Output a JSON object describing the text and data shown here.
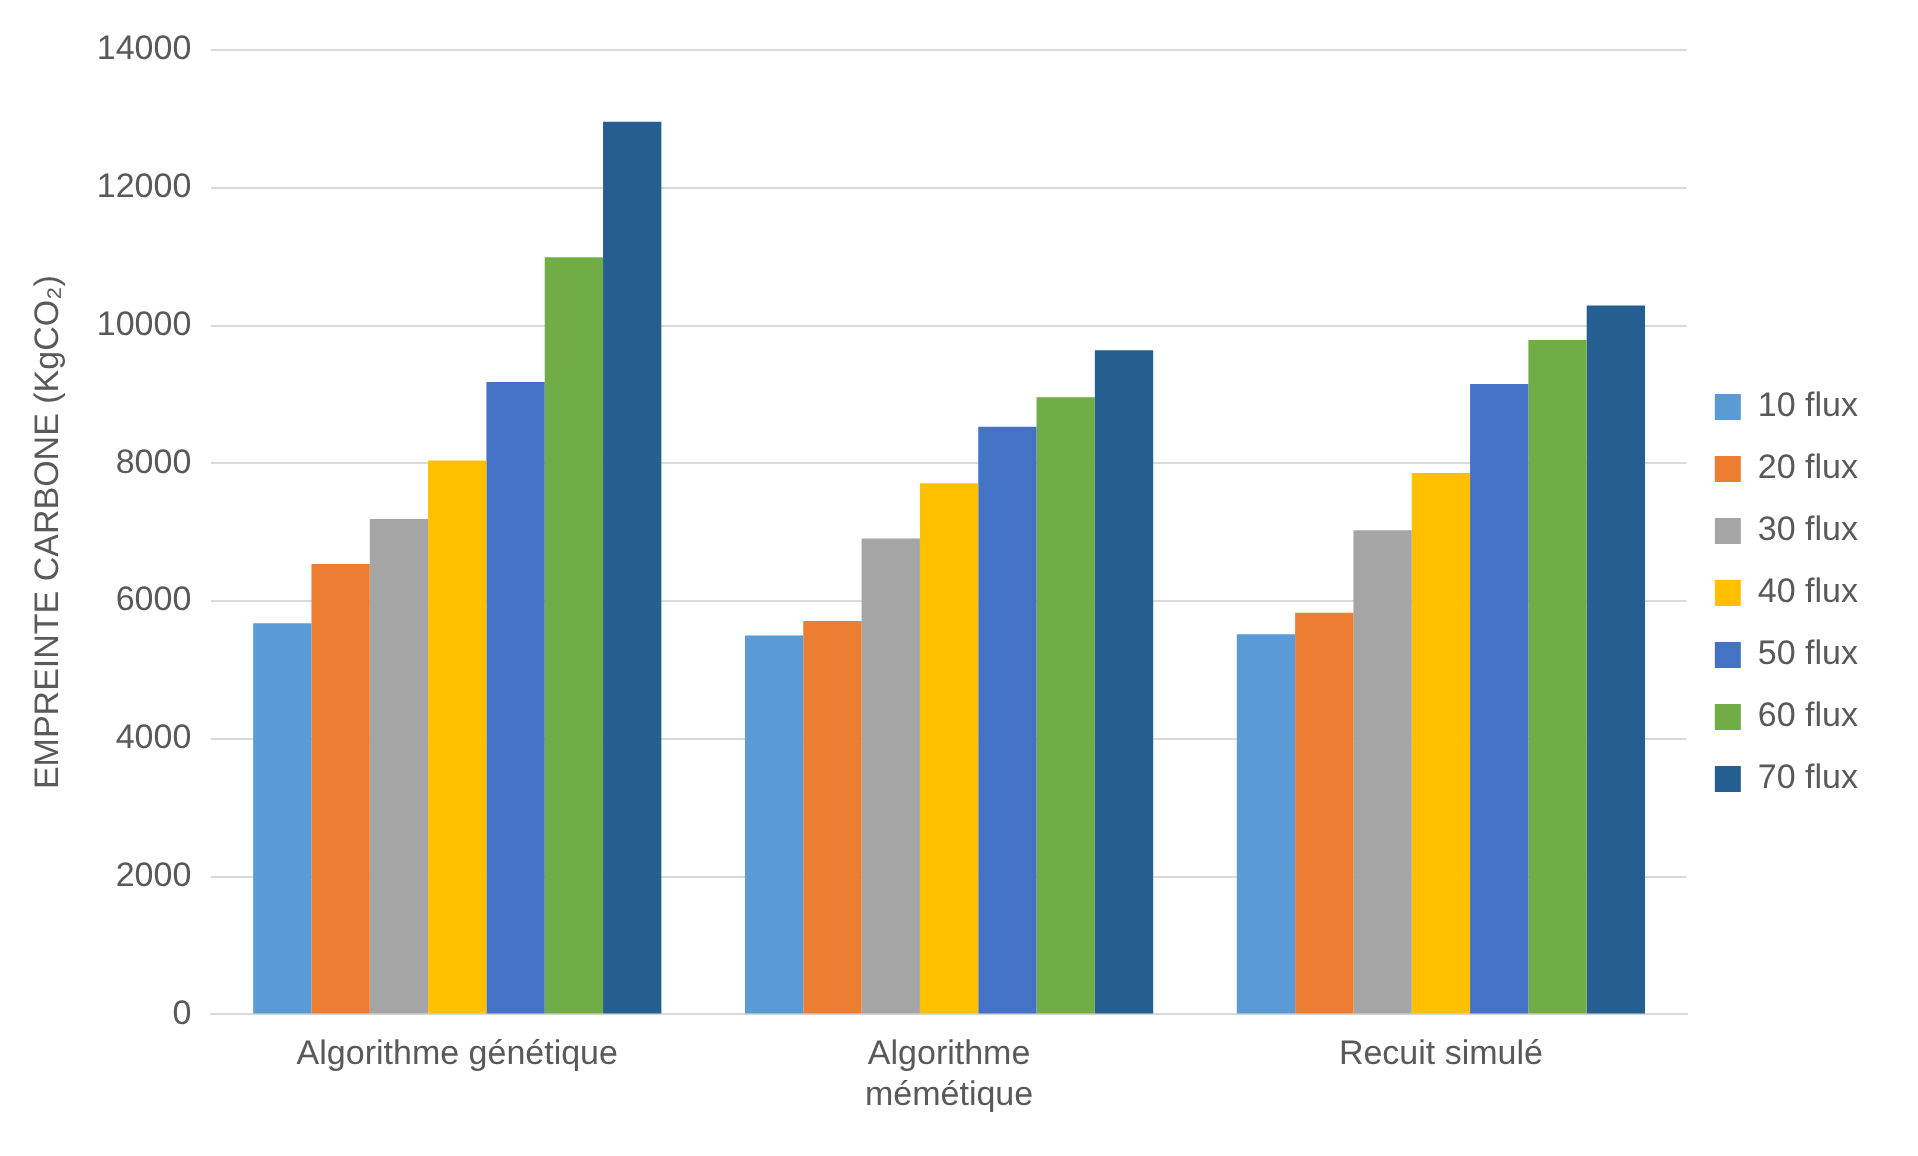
{
  "chart_data": {
    "type": "bar",
    "ylabel": "EMPREINTE CARBONE (KgCO₂)",
    "categories": [
      "Algorithme génétique",
      "Algorithme\nmémétique",
      "Recuit simulé"
    ],
    "series": [
      {
        "name": "10 flux",
        "color": "#5b9bd5",
        "values": [
          5680,
          5500,
          5520
        ]
      },
      {
        "name": "20 flux",
        "color": "#ed7d31",
        "values": [
          6540,
          5710,
          5830
        ]
      },
      {
        "name": "30 flux",
        "color": "#a5a5a5",
        "values": [
          7190,
          6910,
          7030
        ]
      },
      {
        "name": "40 flux",
        "color": "#ffc000",
        "values": [
          8040,
          7710,
          7860
        ]
      },
      {
        "name": "50 flux",
        "color": "#4472c4",
        "values": [
          9180,
          8530,
          9150
        ]
      },
      {
        "name": "60 flux",
        "color": "#70ad47",
        "values": [
          10990,
          8960,
          9790
        ]
      },
      {
        "name": "70 flux",
        "color": "#255e91",
        "values": [
          12960,
          9640,
          10290
        ]
      }
    ],
    "ylim": [
      0,
      14000
    ],
    "yticks": [
      0,
      2000,
      4000,
      6000,
      8000,
      10000,
      12000,
      14000
    ],
    "grid": "y",
    "legend": "right"
  }
}
